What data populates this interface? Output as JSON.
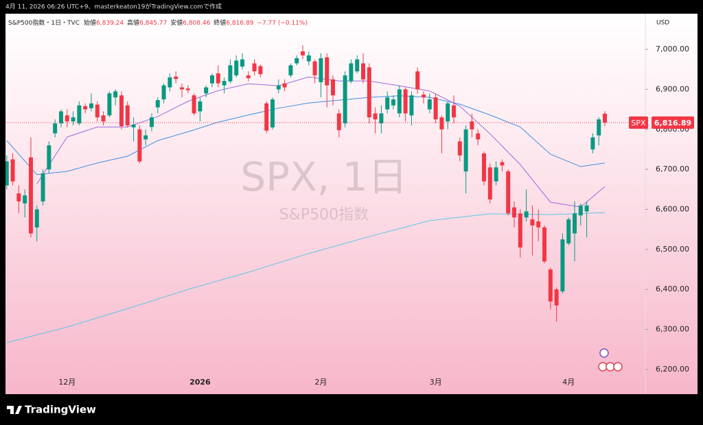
{
  "header": {
    "caption": "4月 11, 2026 06:26 UTC+9、masterkeaton19がTradingView.comで作成"
  },
  "chart_data": {
    "type": "candlestick",
    "title": "S&P500指数・1日・TVC",
    "currency": "USD",
    "watermark": "SPX, 1日",
    "watermark_subtitle": "S&P500指数",
    "ohlc_legend": [
      {
        "name": "始値",
        "text": "6,839.24"
      },
      {
        "name": "高値",
        "text": "6,845.77"
      },
      {
        "name": "安値",
        "text": "6,808.46"
      },
      {
        "name": "終値",
        "text": "6,816.89"
      }
    ],
    "change": "−7.77 (−0.11%)",
    "symbol": "SPX",
    "last_label": "6,816.89",
    "up_color": "#089981",
    "down_color": "#f23645",
    "open": [
      6660,
      6725,
      6640,
      6615,
      6730,
      6555,
      6620,
      6700,
      6790,
      6815,
      6835,
      6820,
      6815,
      6858,
      6853,
      6862,
      6835,
      6835,
      6880,
      6885,
      6860,
      6805,
      6800,
      6775,
      6806,
      6855,
      6875,
      6905,
      6932,
      6905,
      6902,
      6885,
      6845,
      6890,
      6915,
      6940,
      6910,
      6920,
      6935,
      6957,
      6935,
      6965,
      6958,
      6865,
      6805,
      6900,
      6915,
      6935,
      6965,
      6995,
      6970,
      6970,
      6918,
      6980,
      6925,
      6840,
      6815,
      6920,
      6945,
      6965,
      6955,
      6840,
      6815,
      6850,
      6860,
      6840,
      6900,
      6835,
      6945,
      6887,
      6850,
      6880,
      6830,
      6820,
      6860,
      6770,
      6695,
      6820,
      6790,
      6740,
      6705,
      6670,
      6718,
      6695,
      6605,
      6590,
      6580,
      6575,
      6570,
      6555,
      6450,
      6400,
      6395,
      6515,
      6540,
      6585,
      6595,
      6750,
      6785,
      6839.24
    ],
    "high": [
      6735,
      6740,
      6660,
      6650,
      6780,
      6610,
      6700,
      6770,
      6825,
      6850,
      6850,
      6845,
      6870,
      6865,
      6890,
      6870,
      6845,
      6895,
      6900,
      6895,
      6870,
      6830,
      6810,
      6800,
      6840,
      6880,
      6915,
      6940,
      6945,
      6915,
      6910,
      6890,
      6880,
      6910,
      6940,
      6960,
      6930,
      6975,
      6985,
      6990,
      6945,
      6975,
      6962,
      6870,
      6880,
      6925,
      6925,
      6965,
      6985,
      7010,
      6995,
      6975,
      6990,
      6990,
      6935,
      6850,
      6945,
      6975,
      6985,
      6990,
      6965,
      6855,
      6860,
      6895,
      6885,
      6910,
      6905,
      6895,
      6955,
      6895,
      6890,
      6890,
      6835,
      6870,
      6885,
      6780,
      6810,
      6840,
      6800,
      6745,
      6715,
      6720,
      6725,
      6700,
      6620,
      6600,
      6650,
      6610,
      6600,
      6560,
      6455,
      6405,
      6540,
      6580,
      6620,
      6615,
      6620,
      6790,
      6830,
      6845.77
    ],
    "low": [
      6650,
      6660,
      6590,
      6580,
      6530,
      6520,
      6610,
      6690,
      6780,
      6805,
      6805,
      6810,
      6810,
      6840,
      6845,
      6820,
      6810,
      6830,
      6860,
      6800,
      6805,
      6770,
      6715,
      6760,
      6795,
      6840,
      6865,
      6895,
      6915,
      6880,
      6890,
      6835,
      6820,
      6880,
      6905,
      6905,
      6890,
      6915,
      6930,
      6950,
      6920,
      6935,
      6930,
      6790,
      6800,
      6890,
      6895,
      6930,
      6960,
      6975,
      6960,
      6915,
      6880,
      6855,
      6860,
      6780,
      6805,
      6915,
      6940,
      6915,
      6815,
      6790,
      6790,
      6840,
      6850,
      6830,
      6820,
      6810,
      6890,
      6865,
      6840,
      6815,
      6740,
      6800,
      6815,
      6720,
      6640,
      6780,
      6760,
      6660,
      6615,
      6660,
      6695,
      6585,
      6555,
      6480,
      6570,
      6485,
      6520,
      6465,
      6350,
      6320,
      6390,
      6510,
      6470,
      6560,
      6530,
      6740,
      6760,
      6808.46
    ],
    "close": [
      6720,
      6670,
      6620,
      6635,
      6540,
      6600,
      6690,
      6760,
      6815,
      6845,
      6820,
      6830,
      6860,
      6850,
      6865,
      6830,
      6820,
      6890,
      6895,
      6808,
      6810,
      6812,
      6720,
      6785,
      6830,
      6873,
      6910,
      6930,
      6926,
      6900,
      6898,
      6840,
      6870,
      6905,
      6935,
      6915,
      6921,
      6960,
      6972,
      6975,
      6928,
      6945,
      6938,
      6797,
      6875,
      6910,
      6905,
      6960,
      6978,
      6985,
      6985,
      6935,
      6978,
      6910,
      6885,
      6798,
      6935,
      6965,
      6975,
      6925,
      6830,
      6825,
      6840,
      6880,
      6875,
      6900,
      6840,
      6885,
      6900,
      6880,
      6875,
      6825,
      6800,
      6865,
      6830,
      6735,
      6800,
      6800,
      6775,
      6670,
      6625,
      6705,
      6710,
      6590,
      6580,
      6505,
      6595,
      6560,
      6555,
      6470,
      6370,
      6360,
      6525,
      6575,
      6590,
      6610,
      6610,
      6780,
      6825,
      6816.89
    ],
    "moving_averages": [
      {
        "color": "#9c6ade",
        "x": [
          5,
          10,
          15,
          20,
          25,
          30,
          35,
          40,
          45,
          50,
          55,
          60,
          65,
          70,
          75,
          80,
          85,
          90,
          95,
          99
        ],
        "values": [
          6664,
          6781,
          6806,
          6806,
          6832,
          6870,
          6897,
          6914,
          6909,
          6931,
          6921,
          6921,
          6909,
          6896,
          6858,
          6789,
          6712,
          6618,
          6606,
          6657
        ]
      },
      {
        "color": "#3d8fe0",
        "x": [
          0,
          5,
          10,
          15,
          20,
          25,
          30,
          35,
          40,
          45,
          50,
          55,
          60,
          65,
          70,
          75,
          80,
          85,
          90,
          95,
          99
        ],
        "values": [
          6772,
          6687,
          6695,
          6716,
          6733,
          6772,
          6794,
          6818,
          6836,
          6853,
          6866,
          6873,
          6880,
          6884,
          6880,
          6863,
          6836,
          6806,
          6738,
          6707,
          6716
        ]
      },
      {
        "color": "#5cc6e6",
        "x": [
          0,
          10,
          20,
          30,
          40,
          50,
          60,
          70,
          80,
          90,
          99
        ],
        "values": [
          6267,
          6306,
          6352,
          6400,
          6443,
          6490,
          6532,
          6572,
          6589,
          6587,
          6592
        ]
      }
    ],
    "xlim": [
      -0.2,
      105.7
    ],
    "ylim": [
      6138.3,
      7089.1
    ],
    "xticks": [
      {
        "value": 10,
        "label": "12月"
      },
      {
        "value": 32,
        "label": "2026"
      },
      {
        "value": 52,
        "label": "2月"
      },
      {
        "value": 71,
        "label": "3月"
      },
      {
        "value": 93,
        "label": "4月"
      }
    ],
    "yticks": [
      {
        "value": 6200,
        "label": "6,200.00"
      },
      {
        "value": 6300,
        "label": "6,300.00"
      },
      {
        "value": 6400,
        "label": "6,400.00"
      },
      {
        "value": 6500,
        "label": "6,500.00"
      },
      {
        "value": 6600,
        "label": "6,600.00"
      },
      {
        "value": 6700,
        "label": "6,700.00"
      },
      {
        "value": 6800,
        "label": "6,800.00"
      },
      {
        "value": 6900,
        "label": "6,900.00"
      },
      {
        "value": 7000,
        "label": "7,000.00"
      }
    ]
  },
  "footer": {
    "brand": "TradingView"
  }
}
